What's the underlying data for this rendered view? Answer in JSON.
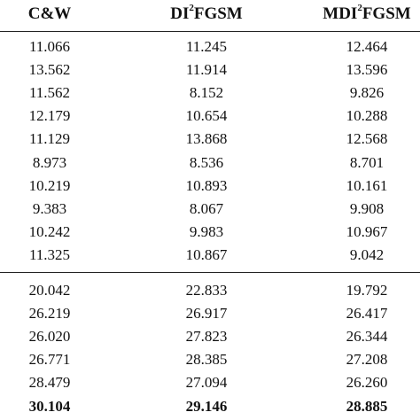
{
  "table": {
    "headers": [
      {
        "text": "C&W",
        "sup": "",
        "rest": ""
      },
      {
        "text": "DI",
        "sup": "2",
        "rest": "FGSM"
      },
      {
        "text": "MDI",
        "sup": "2",
        "rest": "FGSM"
      }
    ],
    "group1": [
      [
        "11.066",
        "11.245",
        "12.464"
      ],
      [
        "13.562",
        "11.914",
        "13.596"
      ],
      [
        "11.562",
        "8.152",
        "9.826"
      ],
      [
        "12.179",
        "10.654",
        "10.288"
      ],
      [
        "11.129",
        "13.868",
        "12.568"
      ],
      [
        "8.973",
        "8.536",
        "8.701"
      ],
      [
        "10.219",
        "10.893",
        "10.161"
      ],
      [
        "9.383",
        "8.067",
        "9.908"
      ],
      [
        "10.242",
        "9.983",
        "10.967"
      ],
      [
        "11.325",
        "10.867",
        "9.042"
      ]
    ],
    "group2": [
      [
        "20.042",
        "22.833",
        "19.792"
      ],
      [
        "26.219",
        "26.917",
        "26.417"
      ],
      [
        "26.020",
        "27.823",
        "26.344"
      ],
      [
        "26.771",
        "28.385",
        "27.208"
      ],
      [
        "28.479",
        "27.094",
        "26.260"
      ],
      [
        "30.104",
        "29.146",
        "28.885"
      ]
    ],
    "bold_last_row_group2": true
  }
}
